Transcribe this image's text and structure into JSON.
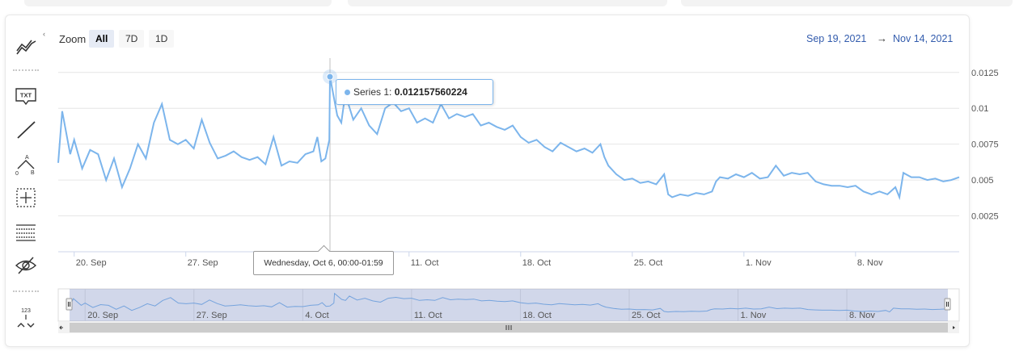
{
  "toolbar": {
    "tools": [
      {
        "name": "indicators-icon"
      },
      {
        "name": "text-annotation-icon",
        "text": "TXT"
      },
      {
        "name": "line-icon"
      },
      {
        "name": "measure-icon",
        "labels": [
          "A",
          "0",
          "B"
        ]
      },
      {
        "name": "crosshair-icon"
      },
      {
        "name": "grid-table-icon"
      },
      {
        "name": "hide-eye-icon"
      },
      {
        "name": "price-indicator-icon",
        "text": "123"
      }
    ],
    "collapse_label": "‹"
  },
  "zoom": {
    "label": "Zoom",
    "buttons": [
      "All",
      "7D",
      "1D"
    ],
    "active": "All"
  },
  "range": {
    "from": "Sep 19, 2021",
    "separator": "→",
    "to": "Nov 14, 2021"
  },
  "tooltip": {
    "series_label": "Series 1: ",
    "value": "0.012157560224",
    "date": "Wednesday, Oct 6, 00:00-01:59"
  },
  "chart_data": {
    "type": "line",
    "series": [
      {
        "name": "Series 1",
        "color": "#7cb5ec",
        "points": [
          [
            "2021-09-19",
            0.0062
          ],
          [
            "2021-09-19T06",
            0.0098
          ],
          [
            "2021-09-19T18",
            0.0068
          ],
          [
            "2021-09-20",
            0.0078
          ],
          [
            "2021-09-20T12",
            0.0058
          ],
          [
            "2021-09-21",
            0.0071
          ],
          [
            "2021-09-21T12",
            0.0068
          ],
          [
            "2021-09-22",
            0.005
          ],
          [
            "2021-09-22T12",
            0.0065
          ],
          [
            "2021-09-23",
            0.0045
          ],
          [
            "2021-09-23T12",
            0.0058
          ],
          [
            "2021-09-24",
            0.0075
          ],
          [
            "2021-09-24T12",
            0.0065
          ],
          [
            "2021-09-25",
            0.009
          ],
          [
            "2021-09-25T12",
            0.0103
          ],
          [
            "2021-09-26",
            0.0078
          ],
          [
            "2021-09-26T12",
            0.0075
          ],
          [
            "2021-09-27",
            0.0078
          ],
          [
            "2021-09-27T12",
            0.0072
          ],
          [
            "2021-09-28",
            0.0092
          ],
          [
            "2021-09-28T12",
            0.0076
          ],
          [
            "2021-09-29",
            0.0065
          ],
          [
            "2021-09-29T12",
            0.0067
          ],
          [
            "2021-09-30",
            0.007
          ],
          [
            "2021-09-30T12",
            0.0066
          ],
          [
            "2021-10-01",
            0.0064
          ],
          [
            "2021-10-01T12",
            0.0066
          ],
          [
            "2021-10-02",
            0.0061
          ],
          [
            "2021-10-02T12",
            0.008
          ],
          [
            "2021-10-03",
            0.006
          ],
          [
            "2021-10-03T12",
            0.0063
          ],
          [
            "2021-10-04",
            0.0062
          ],
          [
            "2021-10-04T12",
            0.0068
          ],
          [
            "2021-10-05",
            0.007
          ],
          [
            "2021-10-05T06",
            0.008
          ],
          [
            "2021-10-05T12",
            0.0063
          ],
          [
            "2021-10-05T18",
            0.0065
          ],
          [
            "2021-10-06",
            0.0078
          ],
          [
            "2021-10-06T01",
            0.0122
          ],
          [
            "2021-10-06T12",
            0.0095
          ],
          [
            "2021-10-06T18",
            0.009
          ],
          [
            "2021-10-07",
            0.011
          ],
          [
            "2021-10-07T12",
            0.0092
          ],
          [
            "2021-10-08",
            0.01
          ],
          [
            "2021-10-08T12",
            0.0088
          ],
          [
            "2021-10-09",
            0.0082
          ],
          [
            "2021-10-09T12",
            0.01
          ],
          [
            "2021-10-10",
            0.0104
          ],
          [
            "2021-10-10T12",
            0.0098
          ],
          [
            "2021-10-11",
            0.01
          ],
          [
            "2021-10-11T12",
            0.009
          ],
          [
            "2021-10-12",
            0.0093
          ],
          [
            "2021-10-12T12",
            0.009
          ],
          [
            "2021-10-13",
            0.0103
          ],
          [
            "2021-10-13T12",
            0.0093
          ],
          [
            "2021-10-14",
            0.0096
          ],
          [
            "2021-10-14T12",
            0.0094
          ],
          [
            "2021-10-15",
            0.0096
          ],
          [
            "2021-10-15T12",
            0.0088
          ],
          [
            "2021-10-16",
            0.009
          ],
          [
            "2021-10-16T12",
            0.0087
          ],
          [
            "2021-10-17",
            0.0085
          ],
          [
            "2021-10-17T12",
            0.0088
          ],
          [
            "2021-10-18",
            0.008
          ],
          [
            "2021-10-18T12",
            0.0076
          ],
          [
            "2021-10-19",
            0.0078
          ],
          [
            "2021-10-19T12",
            0.0073
          ],
          [
            "2021-10-20",
            0.007
          ],
          [
            "2021-10-20T12",
            0.0076
          ],
          [
            "2021-10-21",
            0.0073
          ],
          [
            "2021-10-21T12",
            0.007
          ],
          [
            "2021-10-22",
            0.0072
          ],
          [
            "2021-10-22T12",
            0.0069
          ],
          [
            "2021-10-23",
            0.0075
          ],
          [
            "2021-10-23T06",
            0.0066
          ],
          [
            "2021-10-23T12",
            0.006
          ],
          [
            "2021-10-24",
            0.0054
          ],
          [
            "2021-10-24T12",
            0.005
          ],
          [
            "2021-10-25",
            0.0051
          ],
          [
            "2021-10-25T12",
            0.0048
          ],
          [
            "2021-10-26",
            0.0049
          ],
          [
            "2021-10-26T12",
            0.0047
          ],
          [
            "2021-10-27",
            0.0054
          ],
          [
            "2021-10-27T06",
            0.004
          ],
          [
            "2021-10-27T12",
            0.0038
          ],
          [
            "2021-10-28",
            0.004
          ],
          [
            "2021-10-28T12",
            0.0039
          ],
          [
            "2021-10-29",
            0.0041
          ],
          [
            "2021-10-29T12",
            0.004
          ],
          [
            "2021-10-30",
            0.0042
          ],
          [
            "2021-10-30T06",
            0.0049
          ],
          [
            "2021-10-30T12",
            0.0052
          ],
          [
            "2021-10-31",
            0.0051
          ],
          [
            "2021-10-31T12",
            0.0054
          ],
          [
            "2021-11-01",
            0.0052
          ],
          [
            "2021-11-01T12",
            0.0055
          ],
          [
            "2021-11-02",
            0.0051
          ],
          [
            "2021-11-02T12",
            0.0052
          ],
          [
            "2021-11-03",
            0.006
          ],
          [
            "2021-11-03T12",
            0.0053
          ],
          [
            "2021-11-04",
            0.0055
          ],
          [
            "2021-11-04T12",
            0.0054
          ],
          [
            "2021-11-05",
            0.0055
          ],
          [
            "2021-11-05T12",
            0.0049
          ],
          [
            "2021-11-06",
            0.0047
          ],
          [
            "2021-11-06T12",
            0.0046
          ],
          [
            "2021-11-07",
            0.0046
          ],
          [
            "2021-11-07T12",
            0.0045
          ],
          [
            "2021-11-08",
            0.0046
          ],
          [
            "2021-11-08T12",
            0.0042
          ],
          [
            "2021-11-09",
            0.004
          ],
          [
            "2021-11-09T12",
            0.0042
          ],
          [
            "2021-11-10",
            0.004
          ],
          [
            "2021-11-10T12",
            0.0045
          ],
          [
            "2021-11-10T18",
            0.0038
          ],
          [
            "2021-11-11",
            0.0055
          ],
          [
            "2021-11-11T12",
            0.0052
          ],
          [
            "2021-11-12",
            0.0052
          ],
          [
            "2021-11-12T12",
            0.005
          ],
          [
            "2021-11-13",
            0.0051
          ],
          [
            "2021-11-13T12",
            0.0049
          ],
          [
            "2021-11-14",
            0.005
          ],
          [
            "2021-11-14T12",
            0.0052
          ]
        ]
      }
    ],
    "x_range": [
      "2021-09-19",
      "2021-11-14T12"
    ],
    "ylim": [
      0,
      0.0135
    ],
    "y_ticks": [
      0.0025,
      0.005,
      0.0075,
      0.01,
      0.0125
    ],
    "y_tick_labels": [
      "0.0025",
      "0.005",
      "0.0075",
      "0.01",
      "0.0125"
    ],
    "x_ticks": [
      {
        "date": "2021-09-20",
        "label": "20. Sep"
      },
      {
        "date": "2021-09-27",
        "label": "27. Sep"
      },
      {
        "date": "2021-10-04",
        "label": "4. Oct"
      },
      {
        "date": "2021-10-11",
        "label": "11. Oct"
      },
      {
        "date": "2021-10-18",
        "label": "18. Oct"
      },
      {
        "date": "2021-10-25",
        "label": "25. Oct"
      },
      {
        "date": "2021-11-01",
        "label": "1. Nov"
      },
      {
        "date": "2021-11-08",
        "label": "8. Nov"
      }
    ],
    "y_axis_side": "right",
    "grid": true,
    "crosshair_date": "2021-10-06T01",
    "navigator": true
  }
}
